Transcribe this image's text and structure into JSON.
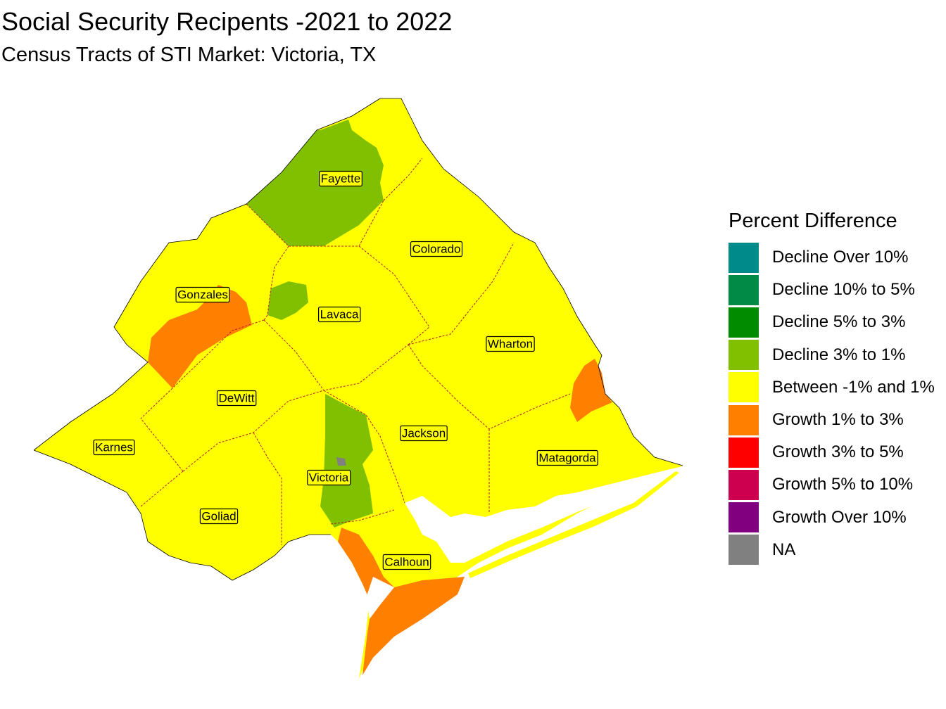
{
  "title": "Social Security Recipents -2021 to 2022",
  "subtitle": "Census Tracts of STI Market: Victoria, TX",
  "legend": {
    "title": "Percent Difference",
    "items": [
      {
        "label": "Decline Over 10%",
        "color": "#008b8b"
      },
      {
        "label": "Decline 10% to 5%",
        "color": "#008a45"
      },
      {
        "label": "Decline 5% to 3%",
        "color": "#008b00"
      },
      {
        "label": "Decline 3% to 1%",
        "color": "#80c000"
      },
      {
        "label": "Between -1% and 1%",
        "color": "#ffff00"
      },
      {
        "label": "Growth 1% to 3%",
        "color": "#ff8000"
      },
      {
        "label": "Growth 3% to 5%",
        "color": "#ff0000"
      },
      {
        "label": "Growth 5% to 10%",
        "color": "#cd0050"
      },
      {
        "label": "Growth Over 10%",
        "color": "#800080"
      },
      {
        "label": "NA",
        "color": "#808080"
      }
    ]
  },
  "counties": [
    {
      "name": "Fayette",
      "category": "Between -1% and 1%"
    },
    {
      "name": "Colorado",
      "category": "Between -1% and 1%"
    },
    {
      "name": "Gonzales",
      "category": "Between -1% and 1%"
    },
    {
      "name": "Lavaca",
      "category": "Between -1% and 1%"
    },
    {
      "name": "Wharton",
      "category": "Between -1% and 1%"
    },
    {
      "name": "DeWitt",
      "category": "Between -1% and 1%"
    },
    {
      "name": "Jackson",
      "category": "Between -1% and 1%"
    },
    {
      "name": "Karnes",
      "category": "Between -1% and 1%"
    },
    {
      "name": "Matagorda",
      "category": "Between -1% and 1%"
    },
    {
      "name": "Victoria",
      "category": "Between -1% and 1%"
    },
    {
      "name": "Goliad",
      "category": "Between -1% and 1%"
    },
    {
      "name": "Calhoun",
      "category": "Between -1% and 1%"
    }
  ],
  "colors": {
    "border": "#b22222",
    "water": "#ffffff"
  }
}
